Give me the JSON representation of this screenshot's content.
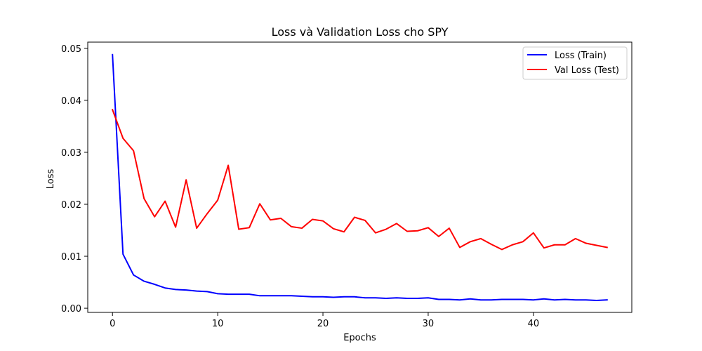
{
  "chart_data": {
    "type": "line",
    "title": "Loss và Validation Loss cho SPY",
    "xlabel": "Epochs",
    "ylabel": "Loss",
    "xlim": [
      -2.35,
      49.35
    ],
    "ylim": [
      -0.0008,
      0.0512
    ],
    "xticks": [
      0,
      10,
      20,
      30,
      40
    ],
    "yticks": [
      0.0,
      0.01,
      0.02,
      0.03,
      0.04,
      0.05
    ],
    "ytick_labels": [
      "0.00",
      "0.01",
      "0.02",
      "0.03",
      "0.04",
      "0.05"
    ],
    "grid": false,
    "legend_position": "top-right",
    "series": [
      {
        "name": "Loss (Train)",
        "color": "#0000ff",
        "x": [
          0,
          1,
          2,
          3,
          4,
          5,
          6,
          7,
          8,
          9,
          10,
          11,
          12,
          13,
          14,
          15,
          16,
          17,
          18,
          19,
          20,
          21,
          22,
          23,
          24,
          25,
          26,
          27,
          28,
          29,
          30,
          31,
          32,
          33,
          34,
          35,
          36,
          37,
          38,
          39,
          40,
          41,
          42,
          43,
          44,
          45,
          46,
          47
        ],
        "values": [
          0.0488,
          0.0104,
          0.0064,
          0.0052,
          0.0046,
          0.0039,
          0.0036,
          0.0035,
          0.0033,
          0.0032,
          0.0028,
          0.0027,
          0.0027,
          0.0027,
          0.0024,
          0.0024,
          0.0024,
          0.0024,
          0.0023,
          0.0022,
          0.0022,
          0.0021,
          0.0022,
          0.0022,
          0.002,
          0.002,
          0.0019,
          0.002,
          0.0019,
          0.0019,
          0.002,
          0.0017,
          0.0017,
          0.0016,
          0.0018,
          0.0016,
          0.0016,
          0.0017,
          0.0017,
          0.0017,
          0.0016,
          0.0018,
          0.0016,
          0.0017,
          0.0016,
          0.0016,
          0.0015,
          0.0016
        ]
      },
      {
        "name": "Val Loss (Test)",
        "color": "#ff0000",
        "x": [
          0,
          1,
          2,
          3,
          4,
          5,
          6,
          7,
          8,
          9,
          10,
          11,
          12,
          13,
          14,
          15,
          16,
          17,
          18,
          19,
          20,
          21,
          22,
          23,
          24,
          25,
          26,
          27,
          28,
          29,
          30,
          31,
          32,
          33,
          34,
          35,
          36,
          37,
          38,
          39,
          40,
          41,
          42,
          43,
          44,
          45,
          46,
          47
        ],
        "values": [
          0.0382,
          0.0327,
          0.0303,
          0.0211,
          0.0176,
          0.0206,
          0.0156,
          0.0247,
          0.0154,
          0.0182,
          0.0208,
          0.0275,
          0.0152,
          0.0155,
          0.0201,
          0.017,
          0.0173,
          0.0157,
          0.0154,
          0.0171,
          0.0168,
          0.0153,
          0.0147,
          0.0175,
          0.0169,
          0.0145,
          0.0152,
          0.0163,
          0.0148,
          0.0149,
          0.0155,
          0.0138,
          0.0154,
          0.0117,
          0.0128,
          0.0134,
          0.0123,
          0.0113,
          0.0122,
          0.0128,
          0.0145,
          0.0116,
          0.0122,
          0.0122,
          0.0134,
          0.0125,
          0.0121,
          0.0117
        ]
      }
    ]
  }
}
